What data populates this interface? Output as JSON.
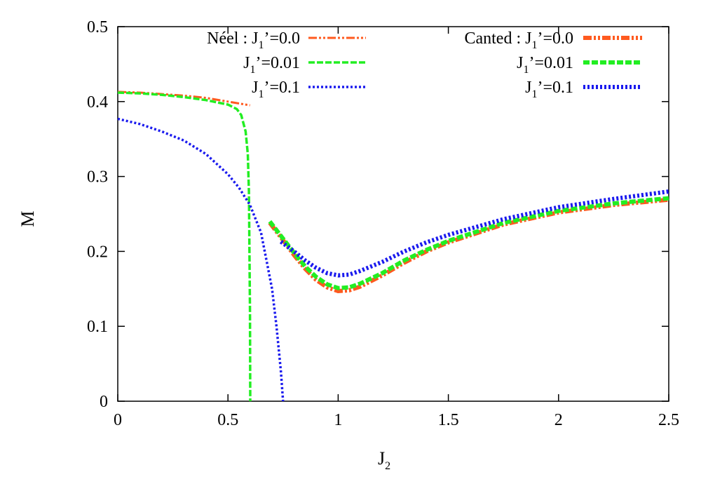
{
  "chart_data": {
    "type": "line",
    "xlabel": "J",
    "xlabel_sub": "2",
    "ylabel": "M",
    "xlim": [
      0,
      2.5
    ],
    "ylim": [
      0,
      0.5
    ],
    "xticks": [
      "0",
      "0.5",
      "1",
      "1.5",
      "2",
      "2.5"
    ],
    "yticks": [
      "0",
      "0.1",
      "0.2",
      "0.3",
      "0.4",
      "0.5"
    ],
    "grid": false,
    "legend_placement": "top",
    "series": [
      {
        "legend_prefix": "Néel : ",
        "legend_main": "J",
        "legend_sub": "1",
        "legend_rest": "’=0.0",
        "color": "#ff5a1f",
        "style": "dash-dot-dot",
        "x": [
          0,
          0.1,
          0.2,
          0.3,
          0.4,
          0.5,
          0.6
        ],
        "y": [
          0.413,
          0.412,
          0.41,
          0.408,
          0.405,
          0.4,
          0.395
        ]
      },
      {
        "legend_prefix": "",
        "legend_main": "J",
        "legend_sub": "1",
        "legend_rest": "’=0.01",
        "color": "#22ee22",
        "style": "dashed",
        "x": [
          0,
          0.1,
          0.2,
          0.3,
          0.4,
          0.5,
          0.54,
          0.56,
          0.58,
          0.59,
          0.595,
          0.6,
          0.601
        ],
        "y": [
          0.412,
          0.411,
          0.409,
          0.406,
          0.402,
          0.396,
          0.39,
          0.382,
          0.36,
          0.33,
          0.28,
          0.12,
          0.0
        ]
      },
      {
        "legend_prefix": "",
        "legend_main": "J",
        "legend_sub": "1",
        "legend_rest": "’=0.1",
        "color": "#1a1aee",
        "style": "dotted",
        "x": [
          0,
          0.1,
          0.2,
          0.3,
          0.4,
          0.5,
          0.55,
          0.6,
          0.65,
          0.7,
          0.72,
          0.74,
          0.75
        ],
        "y": [
          0.377,
          0.37,
          0.36,
          0.348,
          0.33,
          0.303,
          0.285,
          0.262,
          0.225,
          0.15,
          0.1,
          0.04,
          0.0
        ]
      },
      {
        "legend_prefix": "Canted : ",
        "legend_main": "J",
        "legend_sub": "1",
        "legend_rest": "’=0.0",
        "color": "#ff5a1f",
        "style": "dash-dot-dot-thick",
        "x": [
          0.69,
          0.75,
          0.8,
          0.85,
          0.9,
          0.95,
          1.0,
          1.05,
          1.1,
          1.2,
          1.3,
          1.4,
          1.5,
          1.75,
          2.0,
          2.25,
          2.5
        ],
        "y": [
          0.238,
          0.215,
          0.195,
          0.177,
          0.162,
          0.152,
          0.147,
          0.148,
          0.153,
          0.168,
          0.185,
          0.2,
          0.212,
          0.236,
          0.252,
          0.262,
          0.269
        ]
      },
      {
        "legend_prefix": "",
        "legend_main": "J",
        "legend_sub": "1",
        "legend_rest": "’=0.01",
        "color": "#22ee22",
        "style": "dashed-thick",
        "x": [
          0.69,
          0.75,
          0.8,
          0.85,
          0.9,
          0.95,
          1.0,
          1.05,
          1.1,
          1.2,
          1.3,
          1.4,
          1.5,
          1.75,
          2.0,
          2.25,
          2.5
        ],
        "y": [
          0.24,
          0.217,
          0.198,
          0.18,
          0.166,
          0.156,
          0.151,
          0.152,
          0.157,
          0.171,
          0.188,
          0.202,
          0.214,
          0.238,
          0.254,
          0.264,
          0.271
        ]
      },
      {
        "legend_prefix": "",
        "legend_main": "J",
        "legend_sub": "1",
        "legend_rest": "’=0.1",
        "color": "#1a1aee",
        "style": "dotted-thick",
        "x": [
          0.74,
          0.8,
          0.85,
          0.9,
          0.95,
          1.0,
          1.05,
          1.1,
          1.2,
          1.3,
          1.4,
          1.5,
          1.75,
          2.0,
          2.25,
          2.5
        ],
        "y": [
          0.213,
          0.2,
          0.188,
          0.178,
          0.171,
          0.168,
          0.169,
          0.174,
          0.186,
          0.2,
          0.212,
          0.222,
          0.243,
          0.259,
          0.27,
          0.28
        ]
      }
    ]
  }
}
